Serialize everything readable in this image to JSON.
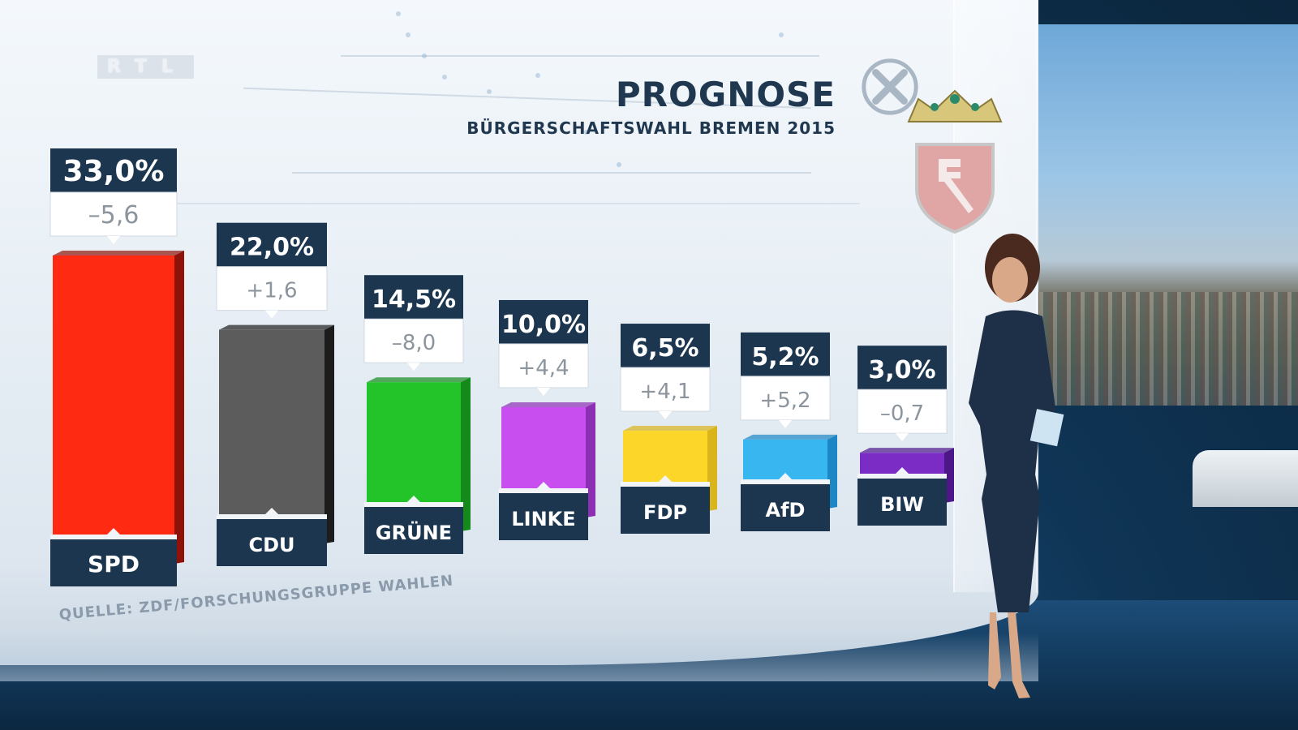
{
  "channel": {
    "logo": "RTL"
  },
  "header": {
    "title": "PROGNOSE",
    "subtitle": "BÜRGERSCHAFTSWAHL BREMEN 2015"
  },
  "source_note": "QUELLE: ZDF/FORSCHUNGSGRUPPE WAHLEN",
  "chart_data": {
    "type": "bar",
    "title": "PROGNOSE",
    "subtitle": "BÜRGERSCHAFTSWAHL BREMEN 2015",
    "categories": [
      "SPD",
      "CDU",
      "GRÜNE",
      "LINKE",
      "FDP",
      "AfD",
      "BIW"
    ],
    "values": [
      33.0,
      22.0,
      14.5,
      10.0,
      6.5,
      5.2,
      3.0
    ],
    "value_labels": [
      "33,0%",
      "22,0%",
      "14,5%",
      "10,0%",
      "6,5%",
      "5,2%",
      "3,0%"
    ],
    "change_labels": [
      "–5,6",
      "+1,6",
      "–8,0",
      "+4,4",
      "+4,1",
      "+5,2",
      "–0,7"
    ],
    "changes": [
      -5.6,
      1.6,
      -8.0,
      4.4,
      4.1,
      5.2,
      -0.7
    ],
    "colors": [
      "#ff2a12",
      "#5c5c5c",
      "#22c42a",
      "#c84ef0",
      "#fcd72a",
      "#38b6f0",
      "#7a2cc4"
    ],
    "side_colors": [
      "#8e1208",
      "#1c1c1c",
      "#138a1a",
      "#8c2fb3",
      "#d9b41a",
      "#1d86c4",
      "#4d178a"
    ],
    "ylim": [
      0,
      33.0
    ],
    "source": "QUELLE: ZDF/FORSCHUNGSGRUPPE WAHLEN"
  }
}
